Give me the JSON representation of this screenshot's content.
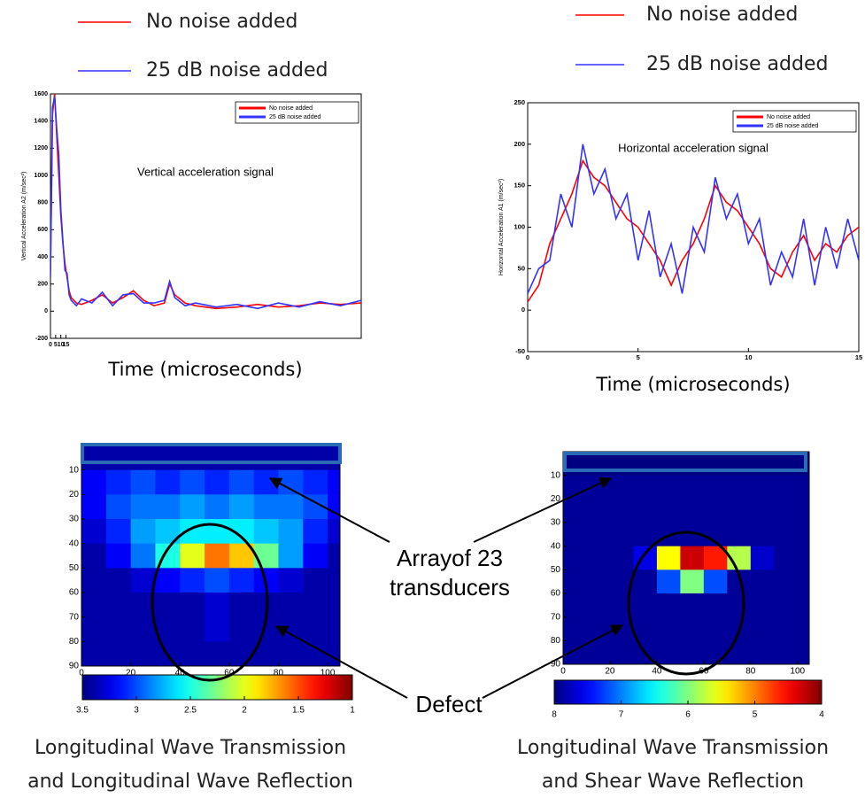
{
  "chart_data": [
    {
      "type": "line",
      "title": "Vertical acceleration signal",
      "xlabel": "Time (microseconds)",
      "ylabel": "Vertical Acceleration A2 (m/sec²)",
      "x": [
        0,
        2,
        4,
        6,
        8,
        10,
        12,
        14,
        16,
        18,
        20,
        25,
        30,
        40,
        50,
        60,
        70,
        80,
        90,
        100,
        110,
        115,
        120,
        130,
        140,
        160,
        180,
        200,
        220,
        240,
        260,
        280,
        300
      ],
      "series": [
        {
          "name": "No noise added",
          "color": "#ff0000",
          "values": [
            300,
            1450,
            1600,
            1300,
            1000,
            700,
            500,
            350,
            250,
            150,
            100,
            60,
            50,
            80,
            120,
            60,
            100,
            150,
            80,
            40,
            60,
            200,
            120,
            60,
            40,
            20,
            30,
            50,
            30,
            40,
            60,
            50,
            60
          ]
        },
        {
          "name": "25 dB noise added",
          "color": "#3333ff",
          "values": [
            250,
            1500,
            1580,
            1350,
            1150,
            750,
            520,
            300,
            280,
            120,
            80,
            40,
            90,
            60,
            140,
            40,
            120,
            130,
            60,
            60,
            80,
            220,
            100,
            40,
            60,
            30,
            50,
            20,
            60,
            30,
            70,
            40,
            80
          ]
        }
      ],
      "xlim": [
        0,
        300
      ],
      "xticks": [
        0,
        5,
        10,
        15
      ],
      "ylim": [
        -200,
        1600
      ],
      "yticks": [
        -200,
        0,
        200,
        400,
        600,
        800,
        1000,
        1200,
        1400,
        1600
      ],
      "grid": false,
      "legend": "upper right"
    },
    {
      "type": "line",
      "title": "Horizontal acceleration signal",
      "xlabel": "Time (microseconds)",
      "ylabel": "Horizontal Acceleration A1 (m/sec²)",
      "x": [
        0,
        0.5,
        1,
        1.5,
        2,
        2.5,
        3,
        3.5,
        4,
        4.5,
        5,
        5.5,
        6,
        6.5,
        7,
        7.5,
        8,
        8.5,
        9,
        9.5,
        10,
        10.5,
        11,
        11.5,
        12,
        12.5,
        13,
        13.5,
        14,
        14.5,
        15
      ],
      "series": [
        {
          "name": "No noise added",
          "color": "#ff0000",
          "values": [
            10,
            30,
            80,
            110,
            140,
            180,
            160,
            150,
            130,
            110,
            100,
            80,
            60,
            30,
            60,
            80,
            110,
            150,
            130,
            120,
            100,
            80,
            50,
            40,
            70,
            90,
            60,
            80,
            70,
            90,
            100
          ]
        },
        {
          "name": "25 dB noise added",
          "color": "#3333ff",
          "values": [
            20,
            50,
            60,
            140,
            100,
            200,
            140,
            170,
            110,
            140,
            60,
            120,
            40,
            80,
            20,
            100,
            70,
            160,
            110,
            140,
            80,
            110,
            30,
            70,
            40,
            110,
            30,
            100,
            50,
            110,
            60
          ]
        }
      ],
      "xlim": [
        0,
        15
      ],
      "xticks": [
        0,
        5,
        10,
        15
      ],
      "ylim": [
        -50,
        250
      ],
      "yticks": [
        -50,
        0,
        50,
        100,
        150,
        200,
        250
      ],
      "grid": false,
      "legend": "upper right"
    },
    {
      "type": "heatmap",
      "caption": [
        "Longitudinal Wave Transmission",
        "and Longitudinal Wave Reflection"
      ],
      "x": [
        5,
        15,
        25,
        35,
        45,
        55,
        65,
        75,
        85,
        95,
        105
      ],
      "y": [
        5,
        15,
        25,
        35,
        45,
        55,
        65,
        75,
        85
      ],
      "z": [
        [
          3.4,
          3.4,
          3.4,
          3.4,
          3.4,
          3.4,
          3.4,
          3.4,
          3.4,
          3.4,
          3.4
        ],
        [
          3.2,
          3.1,
          3.0,
          3.1,
          3.0,
          3.1,
          3.0,
          3.1,
          3.0,
          3.1,
          3.2
        ],
        [
          3.2,
          3.0,
          2.9,
          2.9,
          2.8,
          2.9,
          2.8,
          2.9,
          2.9,
          3.0,
          3.2
        ],
        [
          3.3,
          3.1,
          2.8,
          2.7,
          2.6,
          2.6,
          2.6,
          2.7,
          2.8,
          3.1,
          3.3
        ],
        [
          3.4,
          3.2,
          2.9,
          2.5,
          2.0,
          1.6,
          1.8,
          2.3,
          2.8,
          3.2,
          3.4
        ],
        [
          3.4,
          3.4,
          3.3,
          3.2,
          3.1,
          3.0,
          3.1,
          3.2,
          3.3,
          3.4,
          3.4
        ],
        [
          3.4,
          3.4,
          3.4,
          3.4,
          3.4,
          3.3,
          3.4,
          3.4,
          3.4,
          3.4,
          3.4
        ],
        [
          3.4,
          3.4,
          3.4,
          3.4,
          3.4,
          3.3,
          3.4,
          3.4,
          3.4,
          3.4,
          3.4
        ],
        [
          3.4,
          3.4,
          3.4,
          3.4,
          3.4,
          3.4,
          3.4,
          3.4,
          3.4,
          3.4,
          3.4
        ]
      ],
      "xlim": [
        0,
        105
      ],
      "xticks": [
        0,
        20,
        40,
        60,
        80,
        100
      ],
      "ylim": [
        0,
        90
      ],
      "yticks": [
        10,
        20,
        30,
        40,
        50,
        60,
        70,
        80,
        90
      ],
      "clim": [
        3.5,
        1
      ],
      "cticks": [
        3.5,
        3,
        2.5,
        2,
        1.5,
        1
      ],
      "colormap": "jet"
    },
    {
      "type": "heatmap",
      "caption": [
        "Longitudinal Wave Transmission",
        "and Shear Wave Reflection"
      ],
      "x": [
        5,
        15,
        25,
        35,
        45,
        55,
        65,
        75,
        85,
        95,
        105
      ],
      "y": [
        5,
        15,
        25,
        35,
        45,
        55,
        65,
        75,
        85
      ],
      "z": [
        [
          8.0,
          8.0,
          8.0,
          8.0,
          8.0,
          8.0,
          8.0,
          8.0,
          8.0,
          8.0,
          8.0
        ],
        [
          7.9,
          7.9,
          7.9,
          7.9,
          7.9,
          7.9,
          7.9,
          7.9,
          7.9,
          7.9,
          7.9
        ],
        [
          7.9,
          7.9,
          7.9,
          7.9,
          7.9,
          7.9,
          7.9,
          7.9,
          7.9,
          7.9,
          7.9
        ],
        [
          7.9,
          7.9,
          7.9,
          7.9,
          7.9,
          7.9,
          7.9,
          7.9,
          7.9,
          7.9,
          7.9
        ],
        [
          7.9,
          7.9,
          7.9,
          7.6,
          5.5,
          4.3,
          4.6,
          5.8,
          7.7,
          7.9,
          7.9
        ],
        [
          7.9,
          7.9,
          7.9,
          7.9,
          7.2,
          6.0,
          7.2,
          7.9,
          7.9,
          7.9,
          7.9
        ],
        [
          7.9,
          7.9,
          7.9,
          7.9,
          7.9,
          7.9,
          7.9,
          7.9,
          7.9,
          7.9,
          7.9
        ],
        [
          7.9,
          7.9,
          7.9,
          7.9,
          7.9,
          7.9,
          7.9,
          7.9,
          7.9,
          7.9,
          7.9
        ],
        [
          7.9,
          7.9,
          7.9,
          7.9,
          7.9,
          7.9,
          7.9,
          7.9,
          7.9,
          7.9,
          7.9
        ]
      ],
      "xlim": [
        0,
        105
      ],
      "xticks": [
        0,
        20,
        40,
        60,
        80,
        100
      ],
      "ylim": [
        0,
        90
      ],
      "yticks": [
        10,
        20,
        30,
        40,
        50,
        60,
        70,
        80,
        90
      ],
      "clim": [
        8,
        4
      ],
      "cticks": [
        8,
        7,
        6,
        5,
        4
      ],
      "colormap": "jet"
    }
  ],
  "annotations": [
    "Arrayof 23",
    "transducers",
    "Defect"
  ]
}
